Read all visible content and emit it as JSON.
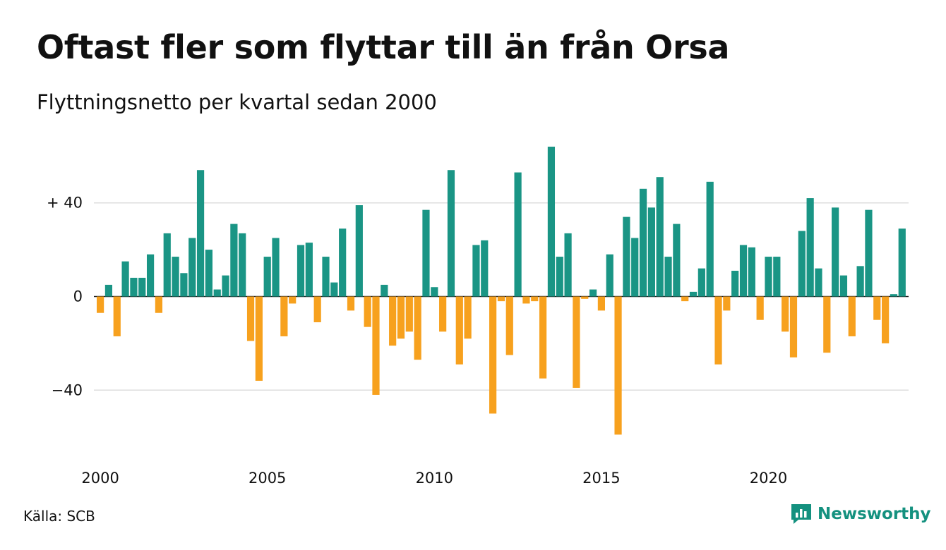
{
  "title": "Oftast fler som flyttar till än från Orsa",
  "subtitle": "Flyttningsnetto per kvartal sedan 2000",
  "source": "Källa: SCB",
  "brand": "Newsworthy",
  "colors": {
    "positive": "#1a9585",
    "negative": "#f7a11e",
    "grid": "#dddddd",
    "brand": "#14917f"
  },
  "chart_data": {
    "type": "bar",
    "title": "Oftast fler som flyttar till än från Orsa",
    "subtitle": "Flyttningsnetto per kvartal sedan 2000",
    "ylim": [
      -65,
      65
    ],
    "y_ticks": [
      {
        "value": 40,
        "label": "+ 40"
      },
      {
        "value": 0,
        "label": "0"
      },
      {
        "value": -40,
        "label": "−40"
      }
    ],
    "x_ticks": [
      "2000",
      "2005",
      "2010",
      "2015",
      "2020"
    ],
    "grid": true,
    "start_year": 2000,
    "values": [
      -7,
      5,
      -17,
      15,
      8,
      8,
      18,
      -7,
      27,
      17,
      10,
      25,
      54,
      20,
      3,
      9,
      31,
      27,
      -19,
      -36,
      17,
      25,
      -17,
      -3,
      22,
      23,
      -11,
      17,
      6,
      29,
      -6,
      39,
      -13,
      -42,
      5,
      -21,
      -18,
      -15,
      -27,
      37,
      4,
      -15,
      54,
      -29,
      -18,
      22,
      24,
      -50,
      -2,
      -25,
      53,
      -3,
      -2,
      -35,
      64,
      17,
      27,
      -39,
      -1,
      3,
      -6,
      18,
      -59,
      34,
      25,
      46,
      38,
      51,
      17,
      31,
      -2,
      2,
      12,
      49,
      -29,
      -6,
      11,
      22,
      21,
      -10,
      17,
      17,
      -15,
      -26,
      28,
      42,
      12,
      -24,
      38,
      9,
      -17,
      13,
      37,
      -10,
      -20,
      1,
      29
    ]
  }
}
